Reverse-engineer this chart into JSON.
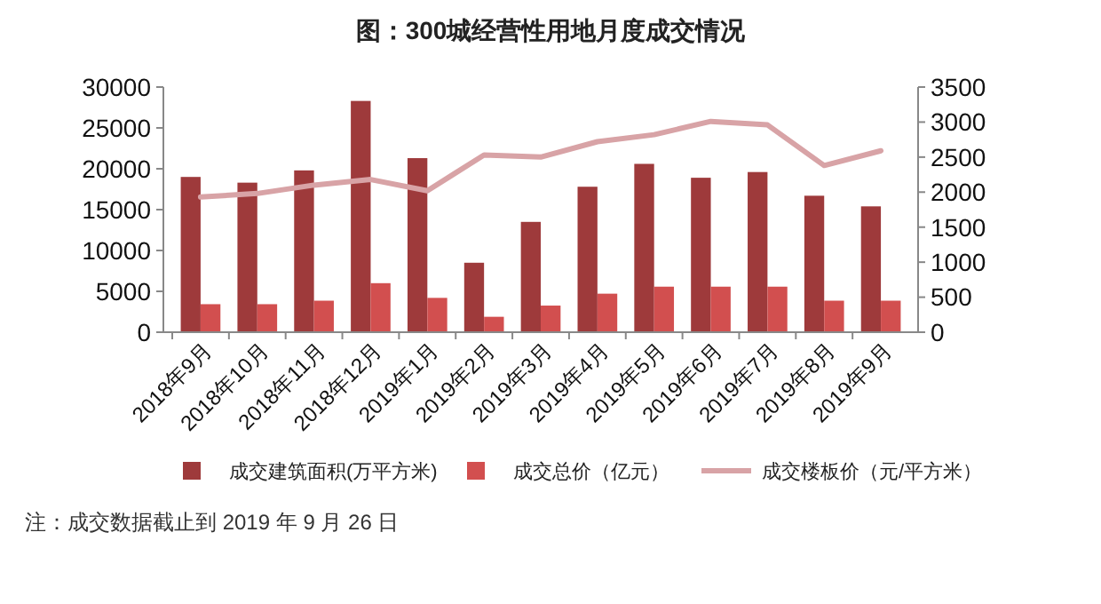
{
  "chart_data": {
    "type": "bar",
    "title": "图：300城经营性用地月度成交情况",
    "categories": [
      "2018年9月",
      "2018年10月",
      "2018年11月",
      "2018年12月",
      "2019年1月",
      "2019年2月",
      "2019年3月",
      "2019年4月",
      "2019年5月",
      "2019年6月",
      "2019年7月",
      "2019年8月",
      "2019年9月"
    ],
    "series": [
      {
        "name": "成交建筑面积(万平方米)",
        "color": "#9e3a3b",
        "values": [
          19000,
          18300,
          19800,
          28300,
          21300,
          8500,
          13500,
          17800,
          20600,
          18900,
          19600,
          16700,
          15400
        ]
      },
      {
        "name": "成交总价（亿元）",
        "color": "#d24f4f",
        "type": "bar",
        "axis": "y2",
        "values": [
          400,
          400,
          450,
          700,
          490,
          220,
          380,
          550,
          650,
          650,
          650,
          450,
          450
        ]
      },
      {
        "name": "成交楼板价（元/平方米）",
        "color": "#d8a3a6",
        "type": "line",
        "axis": "y2",
        "values": [
          1930,
          1980,
          2100,
          2180,
          2020,
          2530,
          2500,
          2720,
          2820,
          3010,
          2960,
          2380,
          2590
        ]
      }
    ],
    "ylim": [
      0,
      30000
    ],
    "yticks": [
      0,
      5000,
      10000,
      15000,
      20000,
      25000,
      30000
    ],
    "y2lim": [
      0,
      3500
    ],
    "y2ticks": [
      0,
      500,
      1000,
      1500,
      2000,
      2500,
      3000,
      3500
    ],
    "grid": false,
    "legend": "bottom",
    "marker": "none",
    "line_style": "solid",
    "annotations": [
      "注：成交数据截止到 2019 年 9 月 26 日"
    ]
  }
}
